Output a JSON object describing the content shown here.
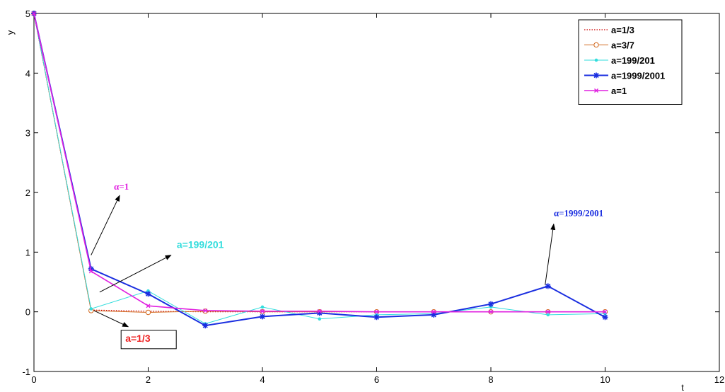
{
  "chart_data": {
    "type": "line",
    "xlabel": "t",
    "ylabel": "y",
    "xlim": [
      0,
      12
    ],
    "ylim": [
      -1,
      5
    ],
    "xticks": [
      "0",
      "2",
      "4",
      "6",
      "8",
      "10",
      "12"
    ],
    "yticks": [
      "-1",
      "0",
      "1",
      "2",
      "3",
      "4",
      "5"
    ],
    "grid": false,
    "legend_position": "top-right",
    "x": [
      0,
      1,
      2,
      3,
      4,
      5,
      6,
      7,
      8,
      9,
      10
    ],
    "series": [
      {
        "name": "a=1/3",
        "color": "#cc0000",
        "style": "dotted",
        "marker": "none",
        "values": [
          5,
          0.03,
          0.01,
          0.0,
          0.0,
          0.0,
          0.0,
          0.0,
          0.0,
          0.0,
          0.0
        ]
      },
      {
        "name": "a=3/7",
        "color": "#d2691e",
        "style": "solid",
        "marker": "circle",
        "values": [
          5,
          0.02,
          -0.01,
          0.01,
          0.0,
          0.0,
          0.0,
          0.0,
          0.0,
          0.0,
          0.0
        ]
      },
      {
        "name": "a=199/201",
        "color": "#33dddd",
        "style": "solid",
        "marker": "dot",
        "values": [
          5,
          0.05,
          0.35,
          -0.2,
          0.08,
          -0.12,
          -0.05,
          -0.03,
          0.08,
          -0.05,
          -0.03
        ]
      },
      {
        "name": "a=1999/2001",
        "color": "#1a2ee0",
        "style": "solid",
        "marker": "star",
        "values": [
          5,
          0.72,
          0.3,
          -0.23,
          -0.08,
          -0.02,
          -0.09,
          -0.05,
          0.13,
          0.43,
          -0.09
        ]
      },
      {
        "name": "a=1",
        "color": "#e020e0",
        "style": "solid",
        "marker": "x",
        "values": [
          5,
          0.68,
          0.1,
          0.02,
          0.01,
          0.01,
          0.0,
          0.0,
          0.0,
          0.0,
          0.0
        ]
      }
    ],
    "annotations": [
      {
        "text": "α=1",
        "color": "#e020e0",
        "font": "serif",
        "arrow_from": [
          1.0,
          0.95
        ],
        "arrow_to": [
          1.5,
          1.95
        ],
        "text_at": [
          1.4,
          2.05
        ]
      },
      {
        "text": "a=199/201",
        "color": "#33dddd",
        "font": "sans",
        "arrow_from": [
          1.15,
          0.33
        ],
        "arrow_to": [
          2.4,
          0.95
        ],
        "text_at": [
          2.5,
          1.07
        ]
      },
      {
        "text": "α=1999/2001",
        "color": "#1a2ee0",
        "font": "serif",
        "arrow_from": [
          8.95,
          0.45
        ],
        "arrow_to": [
          9.1,
          1.47
        ],
        "text_at": [
          9.1,
          1.6
        ]
      },
      {
        "text": "a=1/3",
        "color": "#ee2222",
        "font": "sans",
        "boxed": true,
        "arrow_from": [
          1.05,
          0.02
        ],
        "arrow_to": [
          1.65,
          -0.25
        ],
        "text_at": [
          1.6,
          -0.5
        ]
      }
    ]
  }
}
